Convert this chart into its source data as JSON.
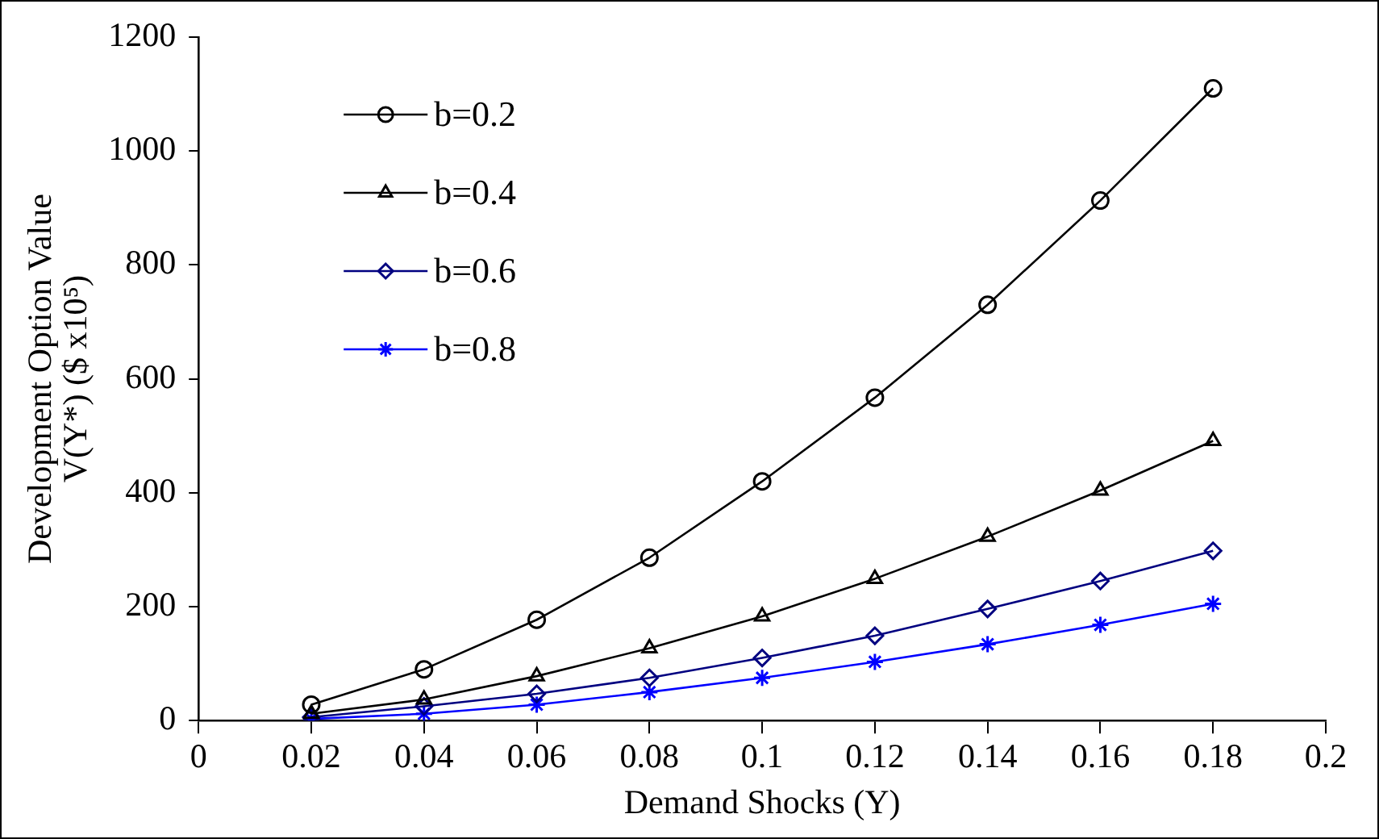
{
  "chart_data": {
    "type": "line",
    "xlabel": "Demand Shocks (Y)",
    "ylabel": [
      "Development Option Value",
      "V(Y*) ($ x10⁵)"
    ],
    "x": [
      0.02,
      0.04,
      0.06,
      0.08,
      0.1,
      0.12,
      0.14,
      0.16,
      0.18
    ],
    "series": [
      {
        "name": "b=0.2",
        "color": "#000000",
        "marker": "circle",
        "values": [
          28,
          90,
          177,
          286,
          420,
          567,
          730,
          913,
          1110
        ]
      },
      {
        "name": "b=0.4",
        "color": "#000000",
        "marker": "triangle",
        "values": [
          12,
          37,
          78,
          127,
          183,
          249,
          323,
          404,
          491
        ]
      },
      {
        "name": "b=0.6",
        "color": "#000080",
        "marker": "diamond",
        "values": [
          6,
          25,
          47,
          75,
          110,
          149,
          196,
          245,
          298
        ]
      },
      {
        "name": "b=0.8",
        "color": "#0000ff",
        "marker": "cross",
        "values": [
          3,
          12,
          28,
          50,
          75,
          103,
          134,
          168,
          205
        ]
      }
    ],
    "xlim": [
      0,
      0.2
    ],
    "xticks": [
      0,
      0.02,
      0.04,
      0.06,
      0.08,
      0.1,
      0.12,
      0.14,
      0.16,
      0.18,
      0.2
    ],
    "ylim": [
      0,
      1200
    ],
    "yticks": [
      0,
      200,
      400,
      600,
      800,
      1000,
      1200
    ],
    "grid": false,
    "legend": "top left",
    "line_style": "solid"
  }
}
